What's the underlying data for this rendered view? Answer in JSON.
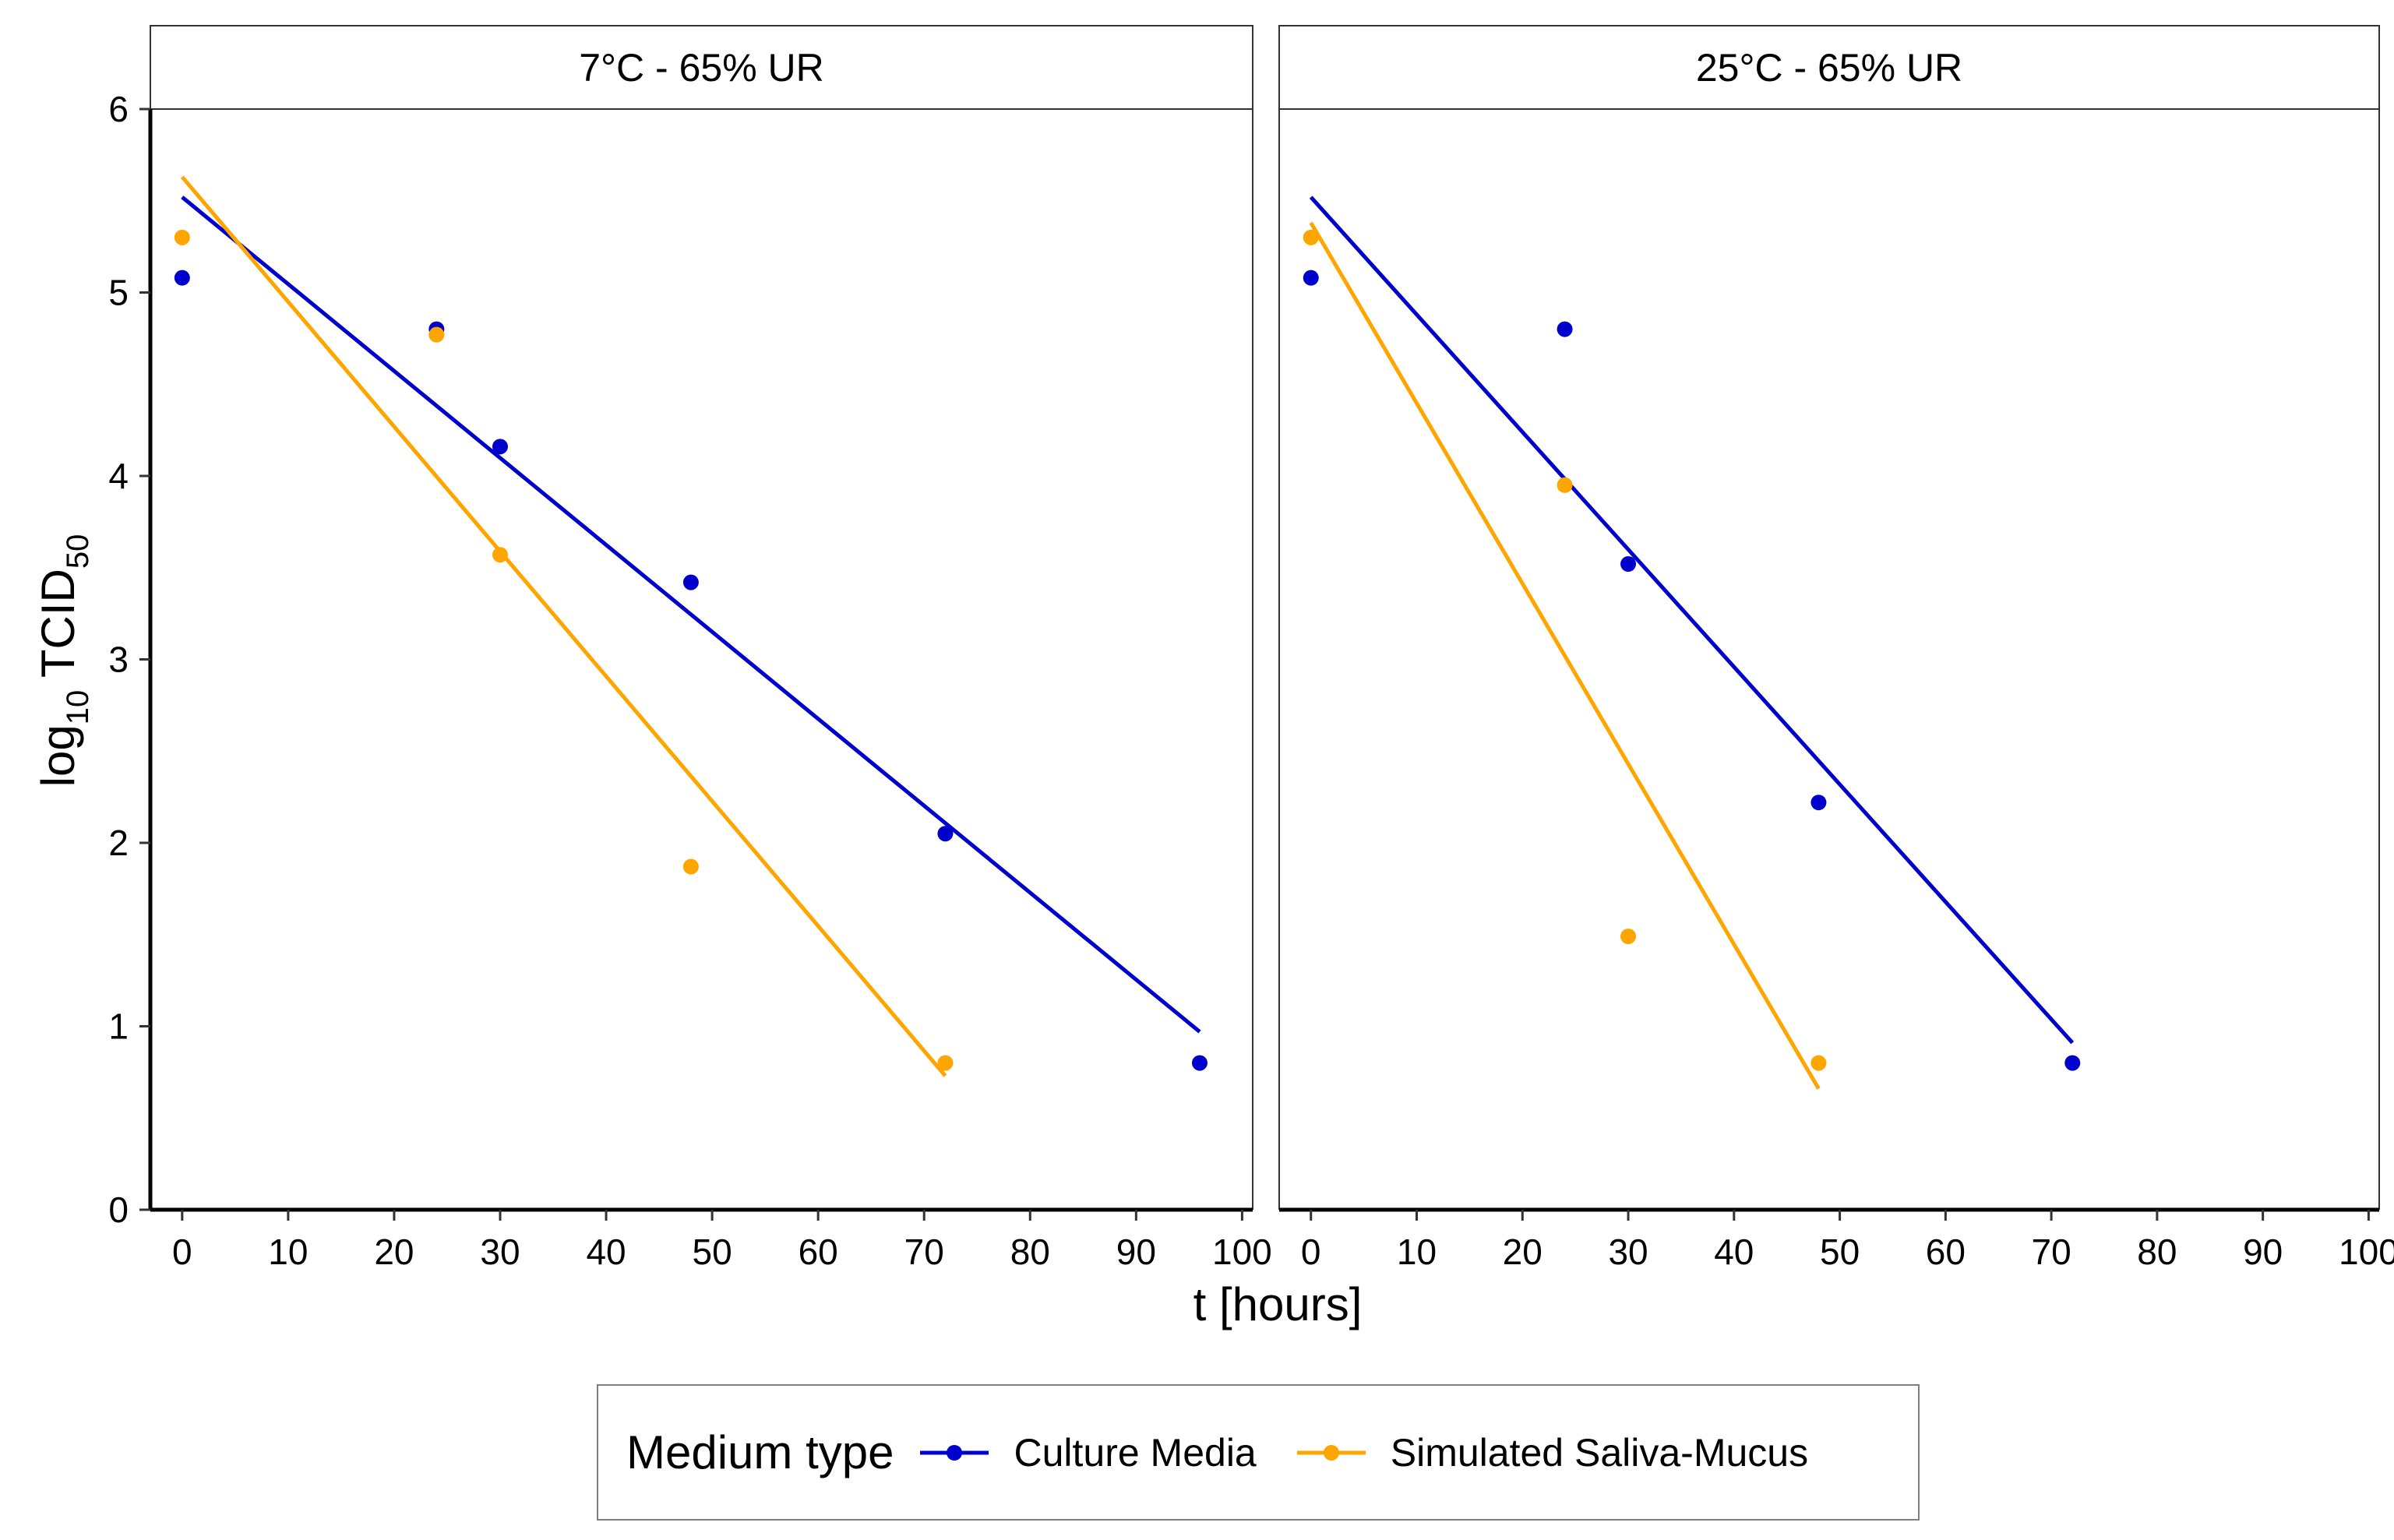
{
  "chart_data": {
    "type": "scatter",
    "y_label": "log",
    "y_label_sub": "10",
    "y_label_mid": " TCID",
    "y_label_sub2": "50",
    "x_label": "t [hours]",
    "ylim": [
      0,
      6
    ],
    "xlim": [
      -3,
      101
    ],
    "x_ticks": [
      "0",
      "10",
      "20",
      "30",
      "40",
      "50",
      "60",
      "70",
      "80",
      "90",
      "100"
    ],
    "y_ticks": [
      "0",
      "1",
      "2",
      "3",
      "4",
      "5",
      "6"
    ],
    "colors": {
      "culture": "#0000cc",
      "saliva": "#ffa500"
    },
    "panels": [
      {
        "title": "7°C - 65% UR",
        "series": [
          {
            "name": "Culture Media",
            "color": "#0000cc",
            "points": [
              [
                0,
                5.08
              ],
              [
                24,
                4.8
              ],
              [
                30,
                4.16
              ],
              [
                48,
                3.42
              ],
              [
                72,
                2.05
              ],
              [
                96,
                0.8
              ]
            ],
            "fit": [
              [
                0,
                5.52
              ],
              [
                96,
                0.97
              ]
            ]
          },
          {
            "name": "Simulated Saliva-Mucus",
            "color": "#ffa500",
            "points": [
              [
                0,
                5.3
              ],
              [
                24,
                4.77
              ],
              [
                30,
                3.57
              ],
              [
                48,
                1.87
              ],
              [
                72,
                0.8
              ]
            ],
            "fit": [
              [
                0,
                5.63
              ],
              [
                72,
                0.73
              ]
            ]
          }
        ]
      },
      {
        "title": "25°C - 65% UR",
        "series": [
          {
            "name": "Culture Media",
            "color": "#0000cc",
            "points": [
              [
                0,
                5.08
              ],
              [
                24,
                4.8
              ],
              [
                30,
                3.52
              ],
              [
                48,
                2.22
              ],
              [
                72,
                0.8
              ]
            ],
            "fit": [
              [
                0,
                5.52
              ],
              [
                72,
                0.91
              ]
            ]
          },
          {
            "name": "Simulated Saliva-Mucus",
            "color": "#ffa500",
            "points": [
              [
                0,
                5.3
              ],
              [
                24,
                3.95
              ],
              [
                30,
                1.49
              ],
              [
                48,
                0.8
              ]
            ],
            "fit": [
              [
                0,
                5.38
              ],
              [
                48,
                0.66
              ]
            ]
          }
        ]
      }
    ]
  },
  "legend": {
    "title": "Medium type",
    "items": [
      {
        "label": "Culture Media",
        "color": "#0000cc"
      },
      {
        "label": "Simulated Saliva-Mucus",
        "color": "#ffa500"
      }
    ]
  }
}
